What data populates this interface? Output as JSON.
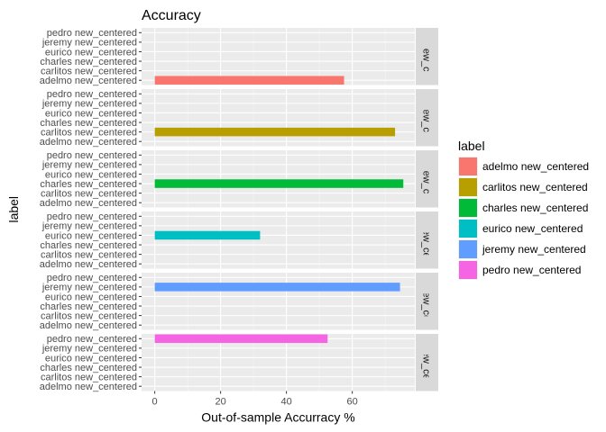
{
  "chart_data": {
    "type": "bar",
    "orientation": "horizontal",
    "faceted": true,
    "title": "Accuracy",
    "xlabel": "Out-of-sample Accurracy %",
    "ylabel": "label",
    "xlim": [
      -4,
      79
    ],
    "x_ticks": [
      0,
      20,
      40,
      60
    ],
    "categories": [
      "pedro new_centered",
      "jeremy new_centered",
      "eurico new_centered",
      "charles new_centered",
      "carlitos new_centered",
      "adelmo new_centered"
    ],
    "facets": [
      {
        "strip_label": "adelmo new_centered",
        "category": "adelmo new_centered",
        "value": 57.5,
        "color": "#F8766D"
      },
      {
        "strip_label": "carlitos new_centered",
        "category": "carlitos new_centered",
        "value": 73.0,
        "color": "#B79F00"
      },
      {
        "strip_label": "charles new_centered",
        "category": "charles new_centered",
        "value": 75.5,
        "color": "#00BA38"
      },
      {
        "strip_label": "eurico new_centered",
        "category": "eurico new_centered",
        "value": 32.0,
        "color": "#00BFC4"
      },
      {
        "strip_label": "jeremy new_centered",
        "category": "jeremy new_centered",
        "value": 74.5,
        "color": "#619CFF"
      },
      {
        "strip_label": "pedro new_centered",
        "category": "pedro new_centered",
        "value": 52.5,
        "color": "#F564E3"
      }
    ],
    "legend": {
      "title": "label",
      "placement": "right",
      "entries": [
        {
          "label": "adelmo new_centered",
          "color": "#F8766D"
        },
        {
          "label": "carlitos new_centered",
          "color": "#B79F00"
        },
        {
          "label": "charles new_centered",
          "color": "#00BA38"
        },
        {
          "label": "eurico new_centered",
          "color": "#00BFC4"
        },
        {
          "label": "jeremy new_centered",
          "color": "#619CFF"
        },
        {
          "label": "pedro new_centered",
          "color": "#F564E3"
        }
      ]
    },
    "grid": true,
    "panel_background": "#EBEBEB",
    "strip_background": "#D9D9D9"
  }
}
